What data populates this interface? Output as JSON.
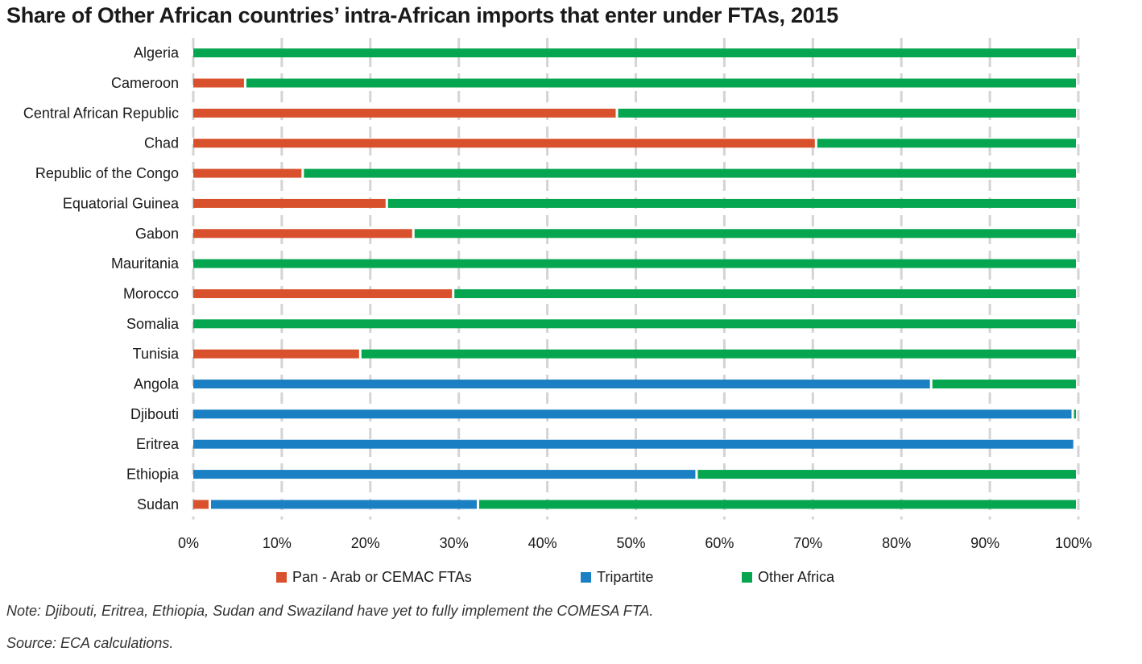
{
  "title": "Share of Other African countries’ intra-African imports that enter under FTAs, 2015",
  "note": "Note: Djibouti, Eritrea, Ethiopia, Sudan and Swaziland have yet to fully implement the COMESA FTA.",
  "source": "Source: ECA calculations.",
  "chart_data": {
    "type": "bar",
    "orientation": "horizontal",
    "stacked": true,
    "title": "Share of Other African countries’ intra-African imports that enter under FTAs, 2015",
    "xlabel": "",
    "ylabel": "",
    "xlim": [
      0,
      100
    ],
    "x_tick_labels": [
      "0%",
      "10%",
      "20%",
      "30%",
      "40%",
      "50%",
      "60%",
      "70%",
      "80%",
      "90%",
      "100%"
    ],
    "grid": "vertical dashed",
    "legend_position": "bottom",
    "categories": [
      "Algeria",
      "Cameroon",
      "Central African Republic",
      "Chad",
      "Republic of the Congo",
      "Equatorial Guinea",
      "Gabon",
      "Mauritania",
      "Morocco",
      "Somalia",
      "Tunisia",
      "Angola",
      "Djibouti",
      "Eritrea",
      "Ethiopia",
      "Sudan"
    ],
    "series": [
      {
        "name": "Pan  - Arab or CEMAC FTAs",
        "color": "#d9512c",
        "values": [
          0,
          6,
          48,
          70.5,
          12.5,
          22,
          25,
          0,
          29.5,
          0,
          19,
          0,
          0,
          0,
          0,
          2
        ]
      },
      {
        "name": "Tripartite",
        "color": "#1b80c3",
        "values": [
          0,
          0,
          0,
          0,
          0,
          0,
          0,
          0,
          0,
          0,
          0,
          83.5,
          99.5,
          99.7,
          57,
          30.3
        ]
      },
      {
        "name": "Other Africa",
        "color": "#06a650",
        "values": [
          100,
          94,
          52,
          29.5,
          87.5,
          78,
          75,
          100,
          70.5,
          100,
          81,
          16.5,
          0.5,
          0,
          43,
          67.7
        ]
      }
    ]
  }
}
